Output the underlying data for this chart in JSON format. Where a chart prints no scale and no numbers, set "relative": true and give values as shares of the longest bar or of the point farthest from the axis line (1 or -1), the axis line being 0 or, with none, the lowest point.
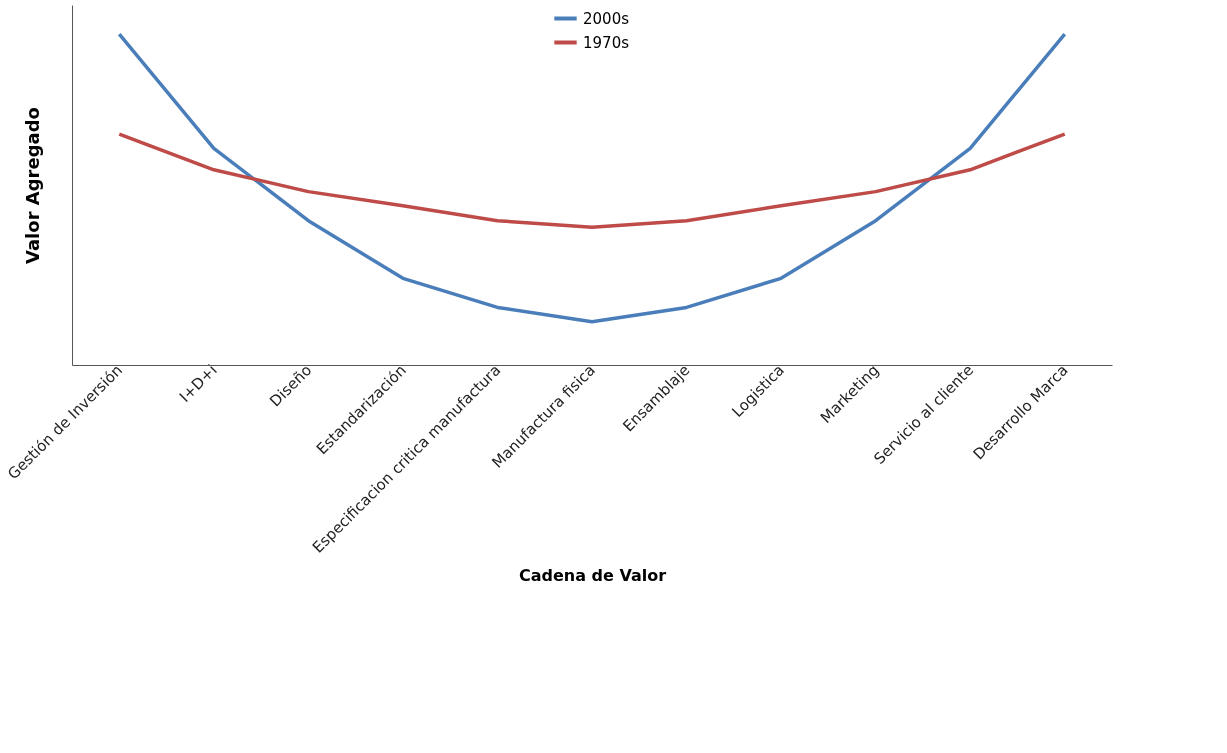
{
  "chart_data": {
    "type": "line",
    "xlabel": "Cadena de Valor",
    "ylabel": "Valor Agregado",
    "relative": true,
    "legend": "top",
    "grid": false,
    "marker": "none",
    "line_style": "solid",
    "categories": [
      "Gestión de Inversión",
      "I+D+i",
      "Diseño",
      "Estandarización",
      "Especificacion critica manufactura",
      "Manufactura fisica",
      "Ensamblaje",
      "Logistica",
      "Marketing",
      "Servicio al cliente",
      "Desarrollo Marca"
    ],
    "series": [
      {
        "name": "2000s",
        "color": "#4a7ebb",
        "values": [
          1,
          0.655,
          0.436,
          0.262,
          0.174,
          0.131,
          0.174,
          0.262,
          0.436,
          0.655,
          1
        ]
      },
      {
        "name": "1970s",
        "color": "#be4b48",
        "values": [
          0.698,
          0.59,
          0.524,
          0.481,
          0.436,
          0.416,
          0.436,
          0.481,
          0.524,
          0.59,
          0.698
        ]
      }
    ]
  }
}
